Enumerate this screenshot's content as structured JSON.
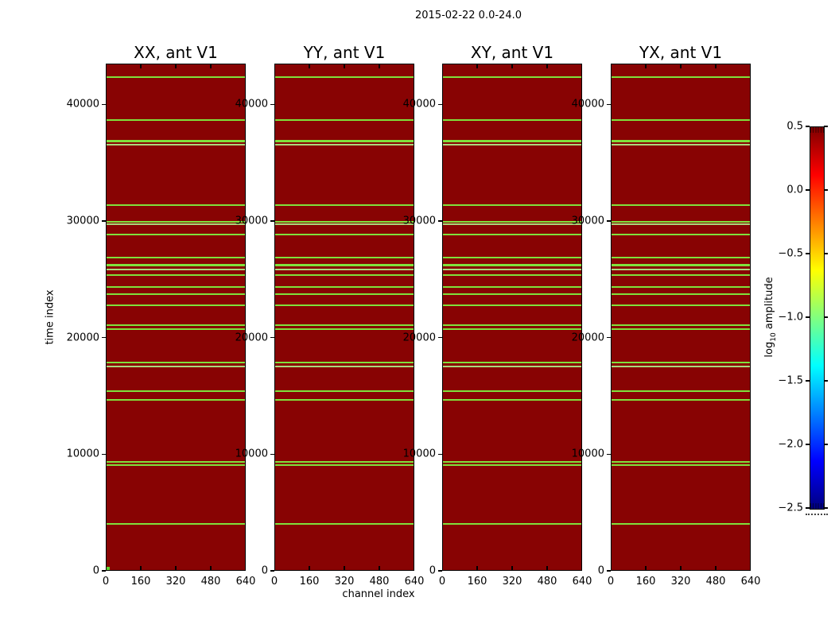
{
  "figure": {
    "suptitle": "2015-02-22 0.0-24.0",
    "xlabel": "channel index",
    "ylabel": "time index",
    "colorbar_label_pre": "log",
    "colorbar_label_sub": "10",
    "colorbar_label_post": " amplitude"
  },
  "chart_data": {
    "type": "heatmap",
    "description": "Four waterfall panels (time index vs channel index) of visibility amplitude for antenna V1 polarisation products; uniform high amplitude (dark red, ~0.5 log10) with narrow low-amplitude (green, ~-1.0 log10) horizontal stripes at flagged time rows; identical stripe pattern in all four panels.",
    "panels": [
      {
        "title": "XX, ant V1"
      },
      {
        "title": "YY, ant V1"
      },
      {
        "title": "XY, ant V1"
      },
      {
        "title": "YX, ant V1"
      }
    ],
    "xlabel": "channel index",
    "ylabel": "time index",
    "xlim": [
      0,
      640
    ],
    "ylim": [
      0,
      43500
    ],
    "x_ticks": [
      0,
      160,
      320,
      480,
      640
    ],
    "x_tick_labels": [
      "0",
      "160",
      "320",
      "480",
      "640"
    ],
    "y_ticks": [
      0,
      10000,
      20000,
      30000,
      40000
    ],
    "y_tick_labels": [
      "0",
      "10000",
      "20000",
      "30000",
      "40000"
    ],
    "background_value": 0.5,
    "background_color": "#880303",
    "stripe_value": -1.0,
    "stripe_colors": {
      "bright": "#7fe13c",
      "pale": "#abd97c"
    },
    "flagged_time_rows": [
      {
        "time": 42300,
        "weight": 1,
        "shade": "bright"
      },
      {
        "time": 38600,
        "weight": 1,
        "shade": "bright"
      },
      {
        "time": 36800,
        "weight": 2,
        "shade": "bright"
      },
      {
        "time": 36500,
        "weight": 1,
        "shade": "pale"
      },
      {
        "time": 31300,
        "weight": 1,
        "shade": "bright"
      },
      {
        "time": 29900,
        "weight": 1,
        "shade": "bright"
      },
      {
        "time": 29700,
        "weight": 1,
        "shade": "pale"
      },
      {
        "time": 28800,
        "weight": 1,
        "shade": "bright"
      },
      {
        "time": 26800,
        "weight": 1,
        "shade": "bright"
      },
      {
        "time": 26200,
        "weight": 2,
        "shade": "bright"
      },
      {
        "time": 25800,
        "weight": 1,
        "shade": "pale"
      },
      {
        "time": 25300,
        "weight": 1,
        "shade": "bright"
      },
      {
        "time": 24300,
        "weight": 1,
        "shade": "bright"
      },
      {
        "time": 23700,
        "weight": 1,
        "shade": "bright"
      },
      {
        "time": 22700,
        "weight": 1,
        "shade": "bright"
      },
      {
        "time": 21000,
        "weight": 1,
        "shade": "bright"
      },
      {
        "time": 20700,
        "weight": 1,
        "shade": "bright"
      },
      {
        "time": 17800,
        "weight": 1,
        "shade": "bright"
      },
      {
        "time": 17500,
        "weight": 1,
        "shade": "pale"
      },
      {
        "time": 15400,
        "weight": 1,
        "shade": "bright"
      },
      {
        "time": 14600,
        "weight": 1,
        "shade": "bright"
      },
      {
        "time": 9300,
        "weight": 1,
        "shade": "bright"
      },
      {
        "time": 9000,
        "weight": 1,
        "shade": "bright"
      },
      {
        "time": 4000,
        "weight": 1,
        "shade": "bright"
      }
    ],
    "corner_anomaly": {
      "panel_index": 0,
      "time_range": [
        0,
        250
      ],
      "channel_range": [
        0,
        12
      ],
      "color": "#5fd42f"
    },
    "colorbar": {
      "label": "log10 amplitude",
      "vmin": -2.5,
      "vmax": 0.5,
      "colormap": "jet",
      "tick_values": [
        0.5,
        0.0,
        -0.5,
        -1.0,
        -1.5,
        -2.0,
        -2.5
      ],
      "tick_labels": [
        "0.5",
        "0.0",
        "−0.5",
        "−1.0",
        "−1.5",
        "−2.0",
        "−2.5"
      ]
    },
    "legend_position": "right-colorbar",
    "grid": false
  }
}
